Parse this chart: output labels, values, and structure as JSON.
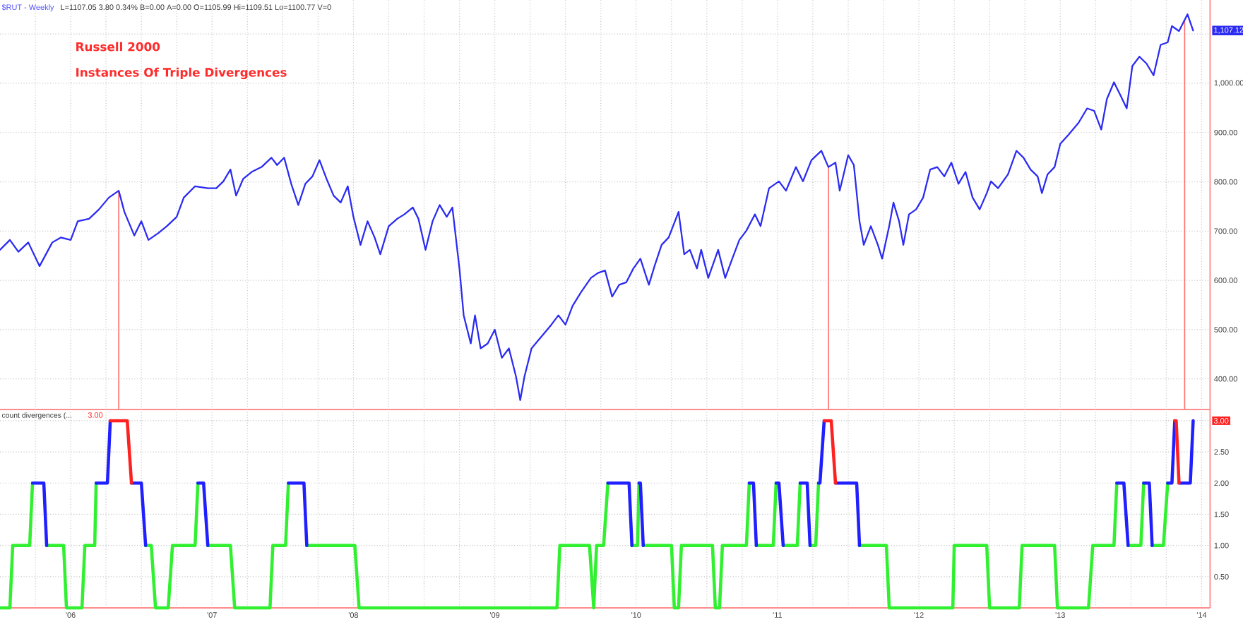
{
  "chart_data": [
    {
      "type": "line",
      "title": "Russell 2000",
      "subtitle": "Instances Of Triple Divergences",
      "annotations": [
        "$RUT - Weekly",
        "L=1107.05 3.80 0.34% B=0.00 A=0.00 O=1105.99 Hi=1109.51 Lo=1100.77 V=0",
        "1,107.12"
      ],
      "x": [
        2005.5,
        2005.57,
        2005.63,
        2005.7,
        2005.78,
        2005.87,
        2005.93,
        2006.0,
        2006.05,
        2006.13,
        2006.2,
        2006.27,
        2006.34,
        2006.38,
        2006.45,
        2006.5,
        2006.55,
        2006.62,
        2006.68,
        2006.75,
        2006.8,
        2006.88,
        2006.97,
        2007.03,
        2007.08,
        2007.13,
        2007.17,
        2007.22,
        2007.28,
        2007.35,
        2007.42,
        2007.46,
        2007.51,
        2007.56,
        2007.61,
        2007.66,
        2007.71,
        2007.76,
        2007.81,
        2007.86,
        2007.91,
        2007.96,
        2008.0,
        2008.05,
        2008.1,
        2008.15,
        2008.19,
        2008.25,
        2008.31,
        2008.36,
        2008.42,
        2008.46,
        2008.51,
        2008.56,
        2008.61,
        2008.66,
        2008.7,
        2008.75,
        2008.78,
        2008.83,
        2008.86,
        2008.9,
        2008.95,
        2009.0,
        2009.05,
        2009.1,
        2009.15,
        2009.18,
        2009.21,
        2009.26,
        2009.33,
        2009.4,
        2009.45,
        2009.5,
        2009.55,
        2009.61,
        2009.68,
        2009.73,
        2009.78,
        2009.83,
        2009.88,
        2009.93,
        2009.98,
        2010.03,
        2010.09,
        2010.13,
        2010.18,
        2010.23,
        2010.3,
        2010.34,
        2010.38,
        2010.43,
        2010.46,
        2010.51,
        2010.58,
        2010.63,
        2010.68,
        2010.73,
        2010.78,
        2010.84,
        2010.88,
        2010.94,
        2011.01,
        2011.06,
        2011.13,
        2011.18,
        2011.24,
        2011.31,
        2011.36,
        2011.41,
        2011.44,
        2011.5,
        2011.54,
        2011.58,
        2011.61,
        2011.66,
        2011.71,
        2011.74,
        2011.79,
        2011.82,
        2011.86,
        2011.89,
        2011.93,
        2011.98,
        2012.03,
        2012.08,
        2012.13,
        2012.18,
        2012.23,
        2012.28,
        2012.33,
        2012.38,
        2012.43,
        2012.48,
        2012.51,
        2012.56,
        2012.63,
        2012.69,
        2012.74,
        2012.79,
        2012.84,
        2012.87,
        2012.91,
        2012.96,
        2013.0,
        2013.06,
        2013.13,
        2013.19,
        2013.24,
        2013.29,
        2013.33,
        2013.38,
        2013.43,
        2013.47,
        2013.51,
        2013.56,
        2013.61,
        2013.66,
        2013.71,
        2013.76,
        2013.79,
        2013.84,
        2013.9,
        2013.94
      ],
      "values": [
        662,
        682,
        658,
        677,
        629,
        677,
        687,
        682,
        720,
        725,
        744,
        768,
        782,
        739,
        691,
        720,
        682,
        696,
        710,
        729,
        768,
        791,
        787,
        787,
        801,
        825,
        772,
        806,
        820,
        830,
        849,
        834,
        849,
        796,
        753,
        796,
        811,
        844,
        806,
        772,
        758,
        791,
        729,
        672,
        720,
        687,
        653,
        710,
        725,
        734,
        748,
        725,
        662,
        720,
        753,
        729,
        748,
        624,
        529,
        472,
        529,
        462,
        472,
        500,
        443,
        462,
        405,
        357,
        405,
        462,
        486,
        510,
        529,
        510,
        548,
        576,
        605,
        615,
        620,
        567,
        591,
        596,
        624,
        644,
        591,
        629,
        672,
        687,
        739,
        653,
        662,
        624,
        662,
        605,
        662,
        605,
        644,
        682,
        701,
        734,
        710,
        787,
        801,
        782,
        830,
        801,
        844,
        863,
        830,
        839,
        782,
        854,
        834,
        720,
        672,
        710,
        672,
        644,
        710,
        758,
        720,
        672,
        734,
        744,
        768,
        825,
        830,
        811,
        839,
        796,
        820,
        768,
        744,
        777,
        801,
        787,
        815,
        863,
        849,
        825,
        811,
        777,
        815,
        830,
        877,
        896,
        920,
        949,
        944,
        906,
        968,
        1002,
        973,
        949,
        1035,
        1054,
        1040,
        1016,
        1078,
        1083,
        1116,
        1106,
        1140,
        1107
      ],
      "color": "#2b2bf2",
      "xlim": [
        2005.5,
        2014.06
      ],
      "ylim": [
        338,
        1169
      ],
      "xticks": [
        {
          "value": 2005.75,
          "label": null
        },
        {
          "value": 2006,
          "label": null
        },
        {
          "value": 2006.25,
          "label": null
        },
        {
          "value": 2006.5,
          "label": null
        },
        {
          "value": 2006.75,
          "label": null
        },
        {
          "value": 2007,
          "label": null
        },
        {
          "value": 2007.25,
          "label": null
        },
        {
          "value": 2007.5,
          "label": null
        },
        {
          "value": 2007.75,
          "label": null
        },
        {
          "value": 2008,
          "label": null
        },
        {
          "value": 2008.25,
          "label": null
        },
        {
          "value": 2008.5,
          "label": null
        },
        {
          "value": 2008.75,
          "label": null
        },
        {
          "value": 2009,
          "label": null
        },
        {
          "value": 2009.25,
          "label": null
        },
        {
          "value": 2009.5,
          "label": null
        },
        {
          "value": 2009.75,
          "label": null
        },
        {
          "value": 2010,
          "label": null
        },
        {
          "value": 2010.25,
          "label": null
        },
        {
          "value": 2010.5,
          "label": null
        },
        {
          "value": 2010.75,
          "label": null
        },
        {
          "value": 2011,
          "label": null
        },
        {
          "value": 2011.25,
          "label": null
        },
        {
          "value": 2011.5,
          "label": null
        },
        {
          "value": 2011.75,
          "label": null
        },
        {
          "value": 2012,
          "label": null
        },
        {
          "value": 2012.25,
          "label": null
        },
        {
          "value": 2012.5,
          "label": null
        },
        {
          "value": 2012.75,
          "label": null
        },
        {
          "value": 2013,
          "label": null
        },
        {
          "value": 2013.25,
          "label": null
        },
        {
          "value": 2013.5,
          "label": null
        },
        {
          "value": 2013.75,
          "label": null
        },
        {
          "value": 2014,
          "label": null
        }
      ],
      "yticks": [
        {
          "value": 400,
          "label": "400.00"
        },
        {
          "value": 500,
          "label": "500.00"
        },
        {
          "value": 600,
          "label": "600.00"
        },
        {
          "value": 700,
          "label": "700.00"
        },
        {
          "value": 800,
          "label": "800.00"
        },
        {
          "value": 900,
          "label": "900.00"
        },
        {
          "value": 1000,
          "label": "1,000.00"
        },
        {
          "value": 1100,
          "label": null
        }
      ],
      "tick_labels": "y",
      "grid": true,
      "ref_lines": [
        {
          "axis": "x",
          "value": 2006.34,
          "color": "#ff6b6b"
        },
        {
          "axis": "x",
          "value": 2011.36,
          "color": "#ff6b6b"
        },
        {
          "axis": "x",
          "value": 2013.88,
          "color": "#ff6b6b"
        }
      ]
    },
    {
      "type": "line",
      "title": "count divergences (...",
      "annotations": [
        "3.00",
        "3.00"
      ],
      "x": [
        2005.5,
        2005.57,
        2005.59,
        2005.71,
        2005.73,
        2005.81,
        2005.83,
        2005.95,
        2005.97,
        2006.08,
        2006.1,
        2006.17,
        2006.18,
        2006.26,
        2006.28,
        2006.4,
        2006.43,
        2006.5,
        2006.53,
        2006.57,
        2006.6,
        2006.69,
        2006.72,
        2006.88,
        2006.9,
        2006.94,
        2006.97,
        2007.13,
        2007.16,
        2007.41,
        2007.43,
        2007.52,
        2007.54,
        2007.65,
        2007.67,
        2008.01,
        2008.04,
        2009.44,
        2009.46,
        2009.67,
        2009.7,
        2009.72,
        2009.77,
        2009.8,
        2009.95,
        2009.97,
        2010.01,
        2010.02,
        2010.03,
        2010.05,
        2010.25,
        2010.27,
        2010.3,
        2010.32,
        2010.54,
        2010.56,
        2010.59,
        2010.61,
        2010.78,
        2010.8,
        2010.83,
        2010.85,
        2010.97,
        2010.99,
        2011.01,
        2011.04,
        2011.14,
        2011.16,
        2011.21,
        2011.23,
        2011.27,
        2011.29,
        2011.3,
        2011.33,
        2011.38,
        2011.41,
        2011.56,
        2011.58,
        2011.77,
        2011.79,
        2012.24,
        2012.25,
        2012.48,
        2012.5,
        2012.71,
        2012.73,
        2012.96,
        2012.98,
        2013.2,
        2013.23,
        2013.38,
        2013.4,
        2013.45,
        2013.48,
        2013.57,
        2013.59,
        2013.63,
        2013.65,
        2013.73,
        2013.76,
        2013.79,
        2013.81,
        2013.82,
        2013.84,
        2013.92,
        2013.94
      ],
      "series": [
        {
          "color": "#30f030",
          "values": [
            0,
            0,
            1,
            1,
            2,
            null,
            1,
            1,
            0,
            0,
            1,
            1,
            2,
            null,
            null,
            null,
            null,
            null,
            1,
            1,
            0,
            0,
            1,
            1,
            2,
            null,
            1,
            1,
            0,
            0,
            1,
            1,
            2,
            null,
            1,
            1,
            0,
            0,
            1,
            1,
            0,
            1,
            1,
            2,
            null,
            1,
            1,
            2,
            null,
            1,
            1,
            0,
            0,
            1,
            1,
            0,
            0,
            1,
            1,
            2,
            null,
            1,
            1,
            2,
            null,
            1,
            1,
            2,
            null,
            1,
            1,
            2,
            null,
            null,
            null,
            null,
            null,
            1,
            1,
            0,
            0,
            1,
            1,
            0,
            0,
            1,
            1,
            0,
            0,
            1,
            1,
            2,
            null,
            1,
            1,
            2,
            null,
            1,
            1,
            2,
            null,
            null,
            null,
            null,
            null,
            null
          ]
        },
        {
          "color": "#1f1fff",
          "values": [
            null,
            null,
            null,
            null,
            2,
            2,
            1,
            null,
            null,
            null,
            null,
            null,
            2,
            2,
            3,
            null,
            2,
            2,
            1,
            null,
            null,
            null,
            null,
            null,
            2,
            2,
            1,
            null,
            null,
            null,
            null,
            null,
            2,
            2,
            1,
            null,
            null,
            null,
            null,
            null,
            null,
            null,
            null,
            2,
            2,
            1,
            null,
            2,
            2,
            1,
            null,
            null,
            null,
            null,
            null,
            null,
            null,
            null,
            null,
            2,
            2,
            1,
            null,
            2,
            2,
            1,
            null,
            2,
            2,
            1,
            null,
            2,
            2,
            3,
            null,
            2,
            2,
            1,
            null,
            null,
            null,
            null,
            null,
            null,
            null,
            null,
            null,
            null,
            null,
            null,
            null,
            2,
            2,
            1,
            null,
            2,
            2,
            1,
            null,
            2,
            2,
            3,
            null,
            2,
            2,
            3
          ]
        },
        {
          "color": "#ff2020",
          "values": [
            null,
            null,
            null,
            null,
            null,
            null,
            null,
            null,
            null,
            null,
            null,
            null,
            null,
            null,
            3,
            3,
            2,
            null,
            null,
            null,
            null,
            null,
            null,
            null,
            null,
            null,
            null,
            null,
            null,
            null,
            null,
            null,
            null,
            null,
            null,
            null,
            null,
            null,
            null,
            null,
            null,
            null,
            null,
            null,
            null,
            null,
            null,
            null,
            null,
            null,
            null,
            null,
            null,
            null,
            null,
            null,
            null,
            null,
            null,
            null,
            null,
            null,
            null,
            null,
            null,
            null,
            null,
            null,
            null,
            null,
            null,
            null,
            null,
            3,
            3,
            2,
            null,
            null,
            null,
            null,
            null,
            null,
            null,
            null,
            null,
            null,
            null,
            null,
            null,
            null,
            null,
            null,
            null,
            null,
            null,
            null,
            null,
            null,
            null,
            null,
            null,
            3,
            3,
            2,
            null,
            null
          ]
        }
      ],
      "xlim": [
        2005.5,
        2014.06
      ],
      "ylim": [
        0,
        3.18
      ],
      "xticks": [
        {
          "value": 2005.75,
          "label": null
        },
        {
          "value": 2006,
          "label": "'06"
        },
        {
          "value": 2006.25,
          "label": null
        },
        {
          "value": 2006.5,
          "label": null
        },
        {
          "value": 2006.75,
          "label": null
        },
        {
          "value": 2007,
          "label": "'07"
        },
        {
          "value": 2007.25,
          "label": null
        },
        {
          "value": 2007.5,
          "label": null
        },
        {
          "value": 2007.75,
          "label": null
        },
        {
          "value": 2008,
          "label": "'08"
        },
        {
          "value": 2008.25,
          "label": null
        },
        {
          "value": 2008.5,
          "label": null
        },
        {
          "value": 2008.75,
          "label": null
        },
        {
          "value": 2009,
          "label": "'09"
        },
        {
          "value": 2009.25,
          "label": null
        },
        {
          "value": 2009.5,
          "label": null
        },
        {
          "value": 2009.75,
          "label": null
        },
        {
          "value": 2010,
          "label": "'10"
        },
        {
          "value": 2010.25,
          "label": null
        },
        {
          "value": 2010.5,
          "label": null
        },
        {
          "value": 2010.75,
          "label": null
        },
        {
          "value": 2011,
          "label": "'11"
        },
        {
          "value": 2011.25,
          "label": null
        },
        {
          "value": 2011.5,
          "label": null
        },
        {
          "value": 2011.75,
          "label": null
        },
        {
          "value": 2012,
          "label": "'12"
        },
        {
          "value": 2012.25,
          "label": null
        },
        {
          "value": 2012.5,
          "label": null
        },
        {
          "value": 2012.75,
          "label": null
        },
        {
          "value": 2013,
          "label": "'13"
        },
        {
          "value": 2013.25,
          "label": null
        },
        {
          "value": 2013.5,
          "label": null
        },
        {
          "value": 2013.75,
          "label": null
        },
        {
          "value": 2014,
          "label": "'14"
        }
      ],
      "yticks": [
        {
          "value": 0.5,
          "label": "0.50"
        },
        {
          "value": 1,
          "label": "1.00"
        },
        {
          "value": 1.5,
          "label": "1.50"
        },
        {
          "value": 2,
          "label": "2.00"
        },
        {
          "value": 2.5,
          "label": "2.50"
        },
        {
          "value": 3,
          "label": null
        }
      ],
      "grid": true
    }
  ]
}
